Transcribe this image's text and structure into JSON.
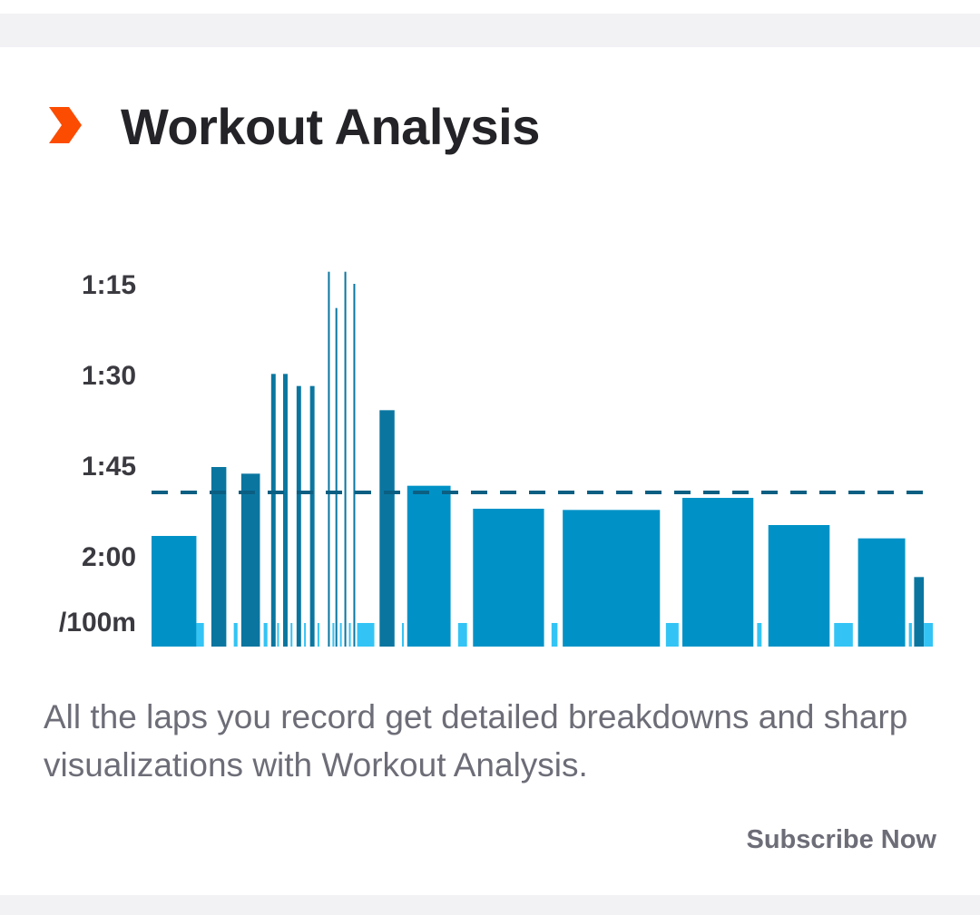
{
  "card": {
    "title": "Workout Analysis",
    "icon": "chevron-right-icon",
    "description": "All the laps you record get detailed breakdowns and sharp visualizations with Workout Analysis.",
    "cta_label": "Subscribe Now"
  },
  "colors": {
    "accent": "#fc4c02",
    "bar": "#0092c7",
    "bar_dark": "#0a76a0",
    "rest": "#33c4f5",
    "reference_line": "#0b5f82",
    "title": "#242428",
    "body_text": "#6d6d78"
  },
  "chart_data": {
    "type": "bar",
    "y_unit_label": "/100m",
    "y_ticks": [
      "1:15",
      "1:30",
      "1:45",
      "2:00"
    ],
    "y_tick_seconds": [
      75,
      90,
      105,
      120
    ],
    "y_axis_inverted": true,
    "reference_pace_seconds": 109.5,
    "laps": [
      {
        "start": 0,
        "end": 0.6,
        "pace": 116.7,
        "kind": "work"
      },
      {
        "start": 0.6,
        "end": 0.7,
        "pace": null,
        "kind": "rest"
      },
      {
        "start": 0.8,
        "end": 1.0,
        "pace": 105.3,
        "kind": "work"
      },
      {
        "start": 1.1,
        "end": 1.15,
        "pace": null,
        "kind": "rest"
      },
      {
        "start": 1.2,
        "end": 1.45,
        "pace": 106.4,
        "kind": "work"
      },
      {
        "start": 1.5,
        "end": 1.55,
        "pace": null,
        "kind": "rest"
      },
      {
        "start": 1.6,
        "end": 1.66,
        "pace": 89.9,
        "kind": "work"
      },
      {
        "start": 1.68,
        "end": 1.7,
        "pace": null,
        "kind": "rest"
      },
      {
        "start": 1.76,
        "end": 1.82,
        "pace": 89.9,
        "kind": "work"
      },
      {
        "start": 1.86,
        "end": 1.88,
        "pace": null,
        "kind": "rest"
      },
      {
        "start": 1.94,
        "end": 2.0,
        "pace": 91.9,
        "kind": "work"
      },
      {
        "start": 2.04,
        "end": 2.06,
        "pace": null,
        "kind": "rest"
      },
      {
        "start": 2.12,
        "end": 2.18,
        "pace": 91.9,
        "kind": "work"
      },
      {
        "start": 2.22,
        "end": 2.24,
        "pace": null,
        "kind": "rest"
      },
      {
        "start": 2.36,
        "end": 2.38,
        "pace": 73.0,
        "kind": "work"
      },
      {
        "start": 2.42,
        "end": 2.44,
        "pace": null,
        "kind": "rest"
      },
      {
        "start": 2.46,
        "end": 2.48,
        "pace": 79.0,
        "kind": "work"
      },
      {
        "start": 2.52,
        "end": 2.54,
        "pace": null,
        "kind": "rest"
      },
      {
        "start": 2.58,
        "end": 2.6,
        "pace": 73.0,
        "kind": "work"
      },
      {
        "start": 2.64,
        "end": 2.66,
        "pace": null,
        "kind": "rest"
      },
      {
        "start": 2.7,
        "end": 2.72,
        "pace": 75.0,
        "kind": "work"
      },
      {
        "start": 2.75,
        "end": 2.98,
        "pace": null,
        "kind": "rest"
      },
      {
        "start": 3.05,
        "end": 3.25,
        "pace": 95.9,
        "kind": "work"
      },
      {
        "start": 3.35,
        "end": 3.37,
        "pace": null,
        "kind": "rest"
      },
      {
        "start": 3.42,
        "end": 4.0,
        "pace": 108.4,
        "kind": "work"
      },
      {
        "start": 4.1,
        "end": 4.22,
        "pace": null,
        "kind": "rest"
      },
      {
        "start": 4.3,
        "end": 5.25,
        "pace": 112.2,
        "kind": "work"
      },
      {
        "start": 5.35,
        "end": 5.43,
        "pace": null,
        "kind": "rest"
      },
      {
        "start": 5.5,
        "end": 6.8,
        "pace": 112.4,
        "kind": "work"
      },
      {
        "start": 6.88,
        "end": 7.05,
        "pace": null,
        "kind": "rest"
      },
      {
        "start": 7.1,
        "end": 8.05,
        "pace": 110.4,
        "kind": "work"
      },
      {
        "start": 8.1,
        "end": 8.16,
        "pace": null,
        "kind": "rest"
      },
      {
        "start": 8.25,
        "end": 9.07,
        "pace": 114.9,
        "kind": "work"
      },
      {
        "start": 9.13,
        "end": 9.38,
        "pace": null,
        "kind": "rest"
      },
      {
        "start": 9.45,
        "end": 10.08,
        "pace": 117.1,
        "kind": "work"
      },
      {
        "start": 10.13,
        "end": 10.17,
        "pace": null,
        "kind": "rest"
      },
      {
        "start": 10.2,
        "end": 10.33,
        "pace": 123.5,
        "kind": "work"
      },
      {
        "start": 10.33,
        "end": 10.45,
        "pace": null,
        "kind": "rest"
      }
    ]
  }
}
